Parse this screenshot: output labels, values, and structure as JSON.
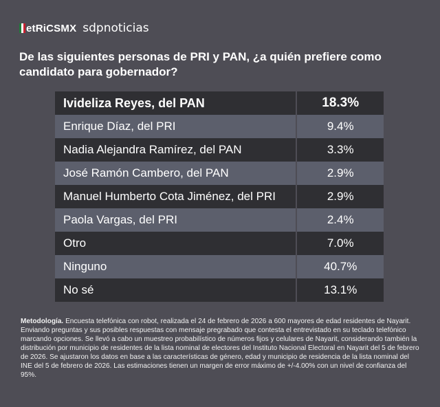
{
  "brand": {
    "logo": "etRiCSMX",
    "partner": "sdpnoticias",
    "flag_colors": [
      "#1f7a3a",
      "#ffffff",
      "#c8202f"
    ]
  },
  "question": "De las siguientes personas de PRI y PAN, ¿a quién prefiere como candidato para gobernador?",
  "results": [
    {
      "name": "Ivideliza Reyes, del PAN",
      "value": "18.3%"
    },
    {
      "name": "Enrique Díaz, del PRI",
      "value": "9.4%"
    },
    {
      "name": "Nadia Alejandra Ramírez, del PAN",
      "value": "3.3%"
    },
    {
      "name": "José Ramón Cambero, del PAN",
      "value": "2.9%"
    },
    {
      "name": "Manuel Humberto Cota Jiménez, del PRI",
      "value": "2.9%"
    },
    {
      "name": "Paola Vargas, del PRI",
      "value": "2.4%"
    },
    {
      "name": "Otro",
      "value": "7.0%"
    },
    {
      "name": "Ninguno",
      "value": "40.7%"
    },
    {
      "name": "No sé",
      "value": "13.1%"
    }
  ],
  "methodology": {
    "label": "Metodología.",
    "text": "Encuesta telefónica con robot, realizada el 24 de febrero de 2026 a 600 mayores de edad residentes de Nayarit. Enviando preguntas y sus posibles respuestas con mensaje pregrabado que contesta el entrevistado en su teclado telefónico marcando opciones. Se llevó a cabo un muestreo probabilístico de números fijos y celulares de Nayarit, considerando también la distribución por municipio de residentes de la lista nominal de electores del Instituto Nacional Electoral en Nayarit del 5 de febrero de 2026. Se ajustaron los datos en base a las características de género, edad y municipio de residencia de la lista nominal del INE del 5 de febrero de 2026. Las estimaciones tienen un margen de error máximo de +/-4.00% con un nivel de confianza del 95%."
  }
}
